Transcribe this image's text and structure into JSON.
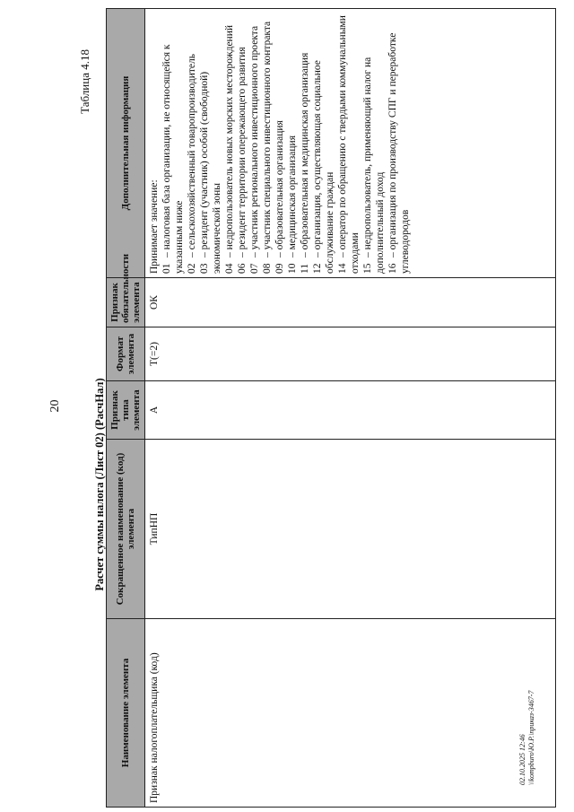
{
  "page_number": "20",
  "table_number": "Таблица 4.18",
  "title": "Расчет суммы налога (Лист 02) (РасчНал)",
  "columns": [
    "Наименование элемента",
    "Сокращенное наименование (код) элемента",
    "Признак типа элемента",
    "Формат элемента",
    "Признак обязательности элемента",
    "Дополнительная информация"
  ],
  "row": {
    "name": "Признак налогоплательщика (код)",
    "code": "ТипНП",
    "type": "А",
    "format": "Т(=2)",
    "required": "ОК",
    "info_intro": "Принимает значение:",
    "options": [
      {
        "n": "01",
        "text": "– налоговая база организации, не относящейся к указанным ниже"
      },
      {
        "n": "02",
        "text": "– сельскохозяйственный товаропроизводитель"
      },
      {
        "n": "03",
        "text": "– резидент (участник) особой (свободной) экономической зоны"
      },
      {
        "n": "04",
        "text": "– недропользователь новых морских месторождений"
      },
      {
        "n": "06",
        "text": "– резидент территории опережающего развития"
      },
      {
        "n": "07",
        "text": "– участник регионального инвестиционного проекта"
      },
      {
        "n": "08",
        "text": "– участник специального инвестиционного контракта"
      },
      {
        "n": "09",
        "text": "– образовательная организация"
      },
      {
        "n": "10",
        "text": "– медицинская организация"
      },
      {
        "n": "11",
        "text": "– образовательная и медицинская организация"
      },
      {
        "n": "12",
        "text": "– организация, осуществляющая социальное обслуживание граждан"
      },
      {
        "n": "14",
        "text": "– оператор по обращению с твердыми коммунальными отходами"
      },
      {
        "n": "15",
        "text": "– недропользователь, применяющий налог на дополнительный доход"
      },
      {
        "n": "16",
        "text": "– организация по производству СПГ и переработке углеводородов"
      }
    ]
  },
  "stamp": {
    "line1": "02.10.2025 12:46",
    "line2": "\\\\kompburo\\Ю.Р.\\приказ-3467-7"
  }
}
